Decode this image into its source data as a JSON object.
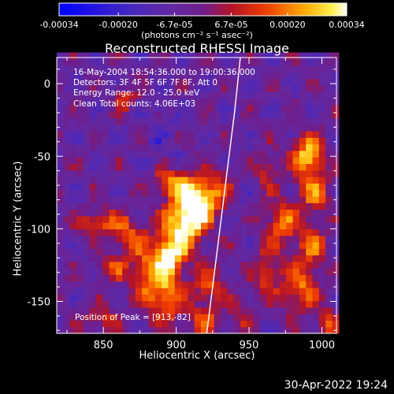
{
  "chart_data": {
    "type": "heatmap",
    "title": "Reconstructed RHESSI Image",
    "xlabel": "Heliocentric X (arcsec)",
    "ylabel": "Heliocentric Y (arcsec)",
    "xlim": [
      818,
      1010
    ],
    "ylim": [
      -172,
      18
    ],
    "x_ticks": [
      850,
      900,
      950,
      1000
    ],
    "x_tick_labels": [
      "850",
      "900",
      "950",
      "1000"
    ],
    "y_ticks": [
      0,
      -50,
      -100,
      -150
    ],
    "y_tick_labels": [
      "0",
      "-50",
      "-100",
      "-150"
    ],
    "colorbar": {
      "range": [
        -0.00034,
        0.00034
      ],
      "ticks": [
        -0.00034,
        -0.0002,
        -6.7e-05,
        6.7e-05,
        0.0002,
        0.00034
      ],
      "tick_labels": [
        "-0.00034",
        "-0.00020",
        "-6.7e-05",
        "6.7e-05",
        "0.00020",
        "0.00034"
      ],
      "units": "(photons cm⁻² s⁻¹ asec⁻²)",
      "colors": [
        "#0000ff",
        "#5a2aa8",
        "#6a1f9c",
        "#b01010",
        "#ff4400",
        "#ffcc00",
        "#ffffff"
      ]
    },
    "annotations": [
      "16-May-2004 18:54:36.000 to 19:00:36.000",
      "Detectors: 3F 4F 5F 6F 7F 8F, Att 0",
      "Energy Range: 12.0 - 25.0 keV",
      "Clean     Total counts: 4.06E+03"
    ],
    "peak_label": "Position of Peak = [913,-82]",
    "peak": [
      913,
      -82
    ],
    "sources": [
      {
        "x": 913,
        "y": -82,
        "intensity": 1.0,
        "sx": 9,
        "sy": 12
      },
      {
        "x": 903,
        "y": -98,
        "intensity": 0.75,
        "sx": 10,
        "sy": 10
      },
      {
        "x": 896,
        "y": -118,
        "intensity": 0.85,
        "sx": 8,
        "sy": 8
      },
      {
        "x": 892,
        "y": -145,
        "intensity": 0.6,
        "sx": 9,
        "sy": 14
      },
      {
        "x": 897,
        "y": -68,
        "intensity": 0.55,
        "sx": 8,
        "sy": 8
      },
      {
        "x": 880,
        "y": -130,
        "intensity": 0.45,
        "sx": 9,
        "sy": 12
      },
      {
        "x": 868,
        "y": -105,
        "intensity": 0.45,
        "sx": 8,
        "sy": 10
      },
      {
        "x": 848,
        "y": -95,
        "intensity": 0.5,
        "sx": 10,
        "sy": 6
      },
      {
        "x": 855,
        "y": -128,
        "intensity": 0.4,
        "sx": 7,
        "sy": 6
      },
      {
        "x": 922,
        "y": -140,
        "intensity": 0.45,
        "sx": 8,
        "sy": 12
      },
      {
        "x": 928,
        "y": -72,
        "intensity": 0.4,
        "sx": 7,
        "sy": 10
      },
      {
        "x": 918,
        "y": -165,
        "intensity": 0.4,
        "sx": 9,
        "sy": 7
      },
      {
        "x": 865,
        "y": -10,
        "intensity": 0.35,
        "sx": 6,
        "sy": 6
      },
      {
        "x": 848,
        "y": -162,
        "intensity": 0.4,
        "sx": 8,
        "sy": 6
      },
      {
        "x": 990,
        "y": -50,
        "intensity": 0.8,
        "sx": 8,
        "sy": 10
      },
      {
        "x": 995,
        "y": -75,
        "intensity": 0.55,
        "sx": 7,
        "sy": 9
      },
      {
        "x": 972,
        "y": -95,
        "intensity": 0.6,
        "sx": 8,
        "sy": 10
      },
      {
        "x": 993,
        "y": -110,
        "intensity": 0.5,
        "sx": 7,
        "sy": 10
      },
      {
        "x": 985,
        "y": -140,
        "intensity": 0.55,
        "sx": 9,
        "sy": 12
      },
      {
        "x": 962,
        "y": -130,
        "intensity": 0.45,
        "sx": 6,
        "sy": 12
      },
      {
        "x": 962,
        "y": -60,
        "intensity": 0.35,
        "sx": 6,
        "sy": 8
      },
      {
        "x": 1003,
        "y": -165,
        "intensity": 0.4,
        "sx": 5,
        "sy": 8
      },
      {
        "x": 945,
        "y": -158,
        "intensity": 0.3,
        "sx": 5,
        "sy": 8
      }
    ],
    "limb_curve": [
      [
        944,
        18
      ],
      [
        940,
        -20
      ],
      [
        935,
        -60
      ],
      [
        930,
        -100
      ],
      [
        925,
        -140
      ],
      [
        921,
        -172
      ]
    ]
  },
  "footer": {
    "date": "30-Apr-2022 19:24"
  }
}
